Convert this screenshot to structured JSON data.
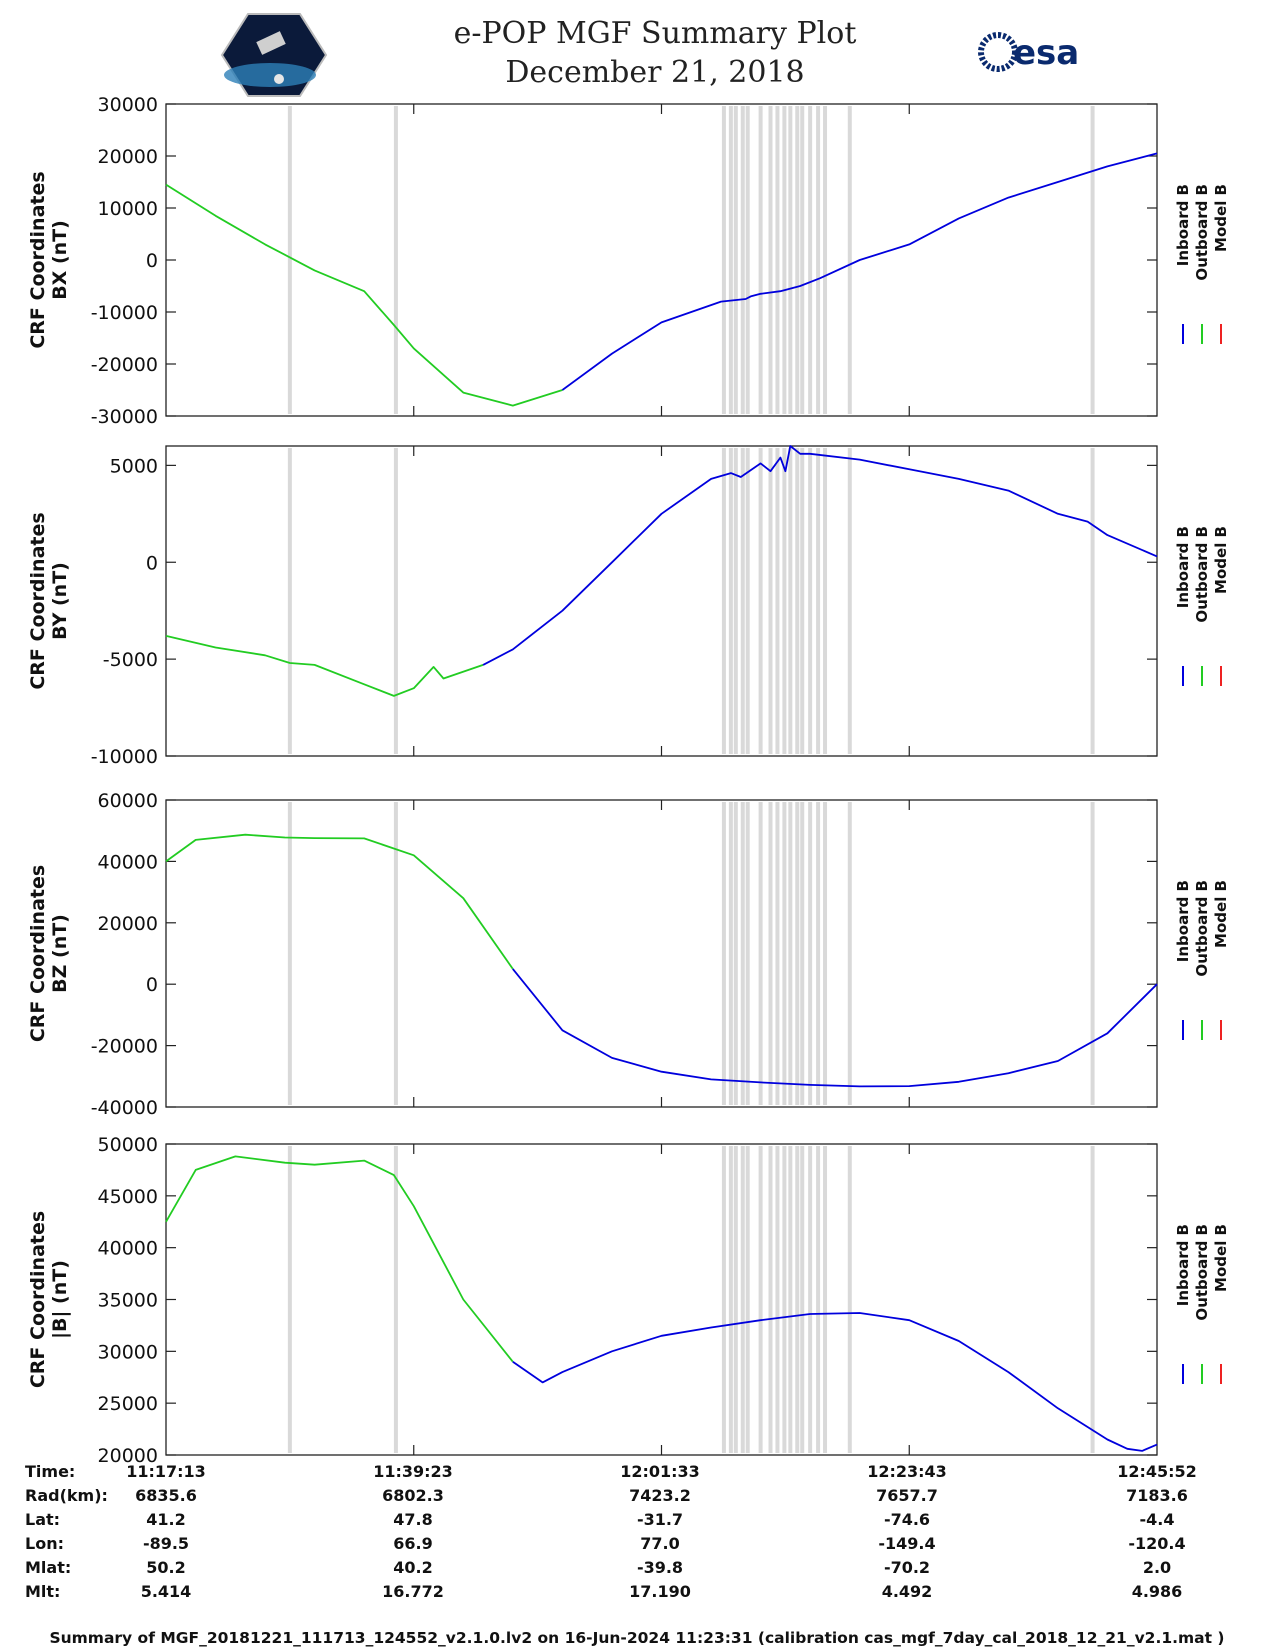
{
  "title": "e-POP MGF Summary Plot",
  "date": "December 21, 2018",
  "logos": {
    "left": "cassiope-mission-logo",
    "right_text": "esa"
  },
  "colors": {
    "inboard": "#0000dd",
    "outboard": "#22cc22",
    "model": "#ee2222",
    "shading": "#d9d9d9"
  },
  "legend": [
    {
      "label": "Inboard B",
      "color": "#0000dd"
    },
    {
      "label": "Outboard B",
      "color": "#22cc22"
    },
    {
      "label": "Model B",
      "color": "#ee2222"
    }
  ],
  "chart_data": [
    {
      "type": "line",
      "id": "bx",
      "ylabel": [
        "CRF Coordinates",
        "BX (nT)"
      ],
      "ylim": [
        -30000,
        30000
      ],
      "yticks": [
        "30000",
        "20000",
        "10000",
        "0",
        "-10000",
        "-20000",
        "-30000"
      ],
      "ytick_values": [
        30000,
        20000,
        10000,
        0,
        -10000,
        -20000,
        -30000
      ],
      "series": [
        {
          "name": "Outboard B",
          "t": [
            0,
            0.05,
            0.1,
            0.125,
            0.15,
            0.2,
            0.23,
            0.25,
            0.3,
            0.35,
            0.4
          ],
          "v": [
            14500,
            8500,
            3000,
            500,
            -2000,
            -6000,
            -12500,
            -17000,
            -25500,
            -28000,
            -25000
          ]
        },
        {
          "name": "Inboard B",
          "t": [
            0.4,
            0.45,
            0.5,
            0.56,
            0.585,
            0.59,
            0.6,
            0.62,
            0.64,
            0.66,
            0.7,
            0.75,
            0.8,
            0.85,
            0.9,
            0.95,
            1.0
          ],
          "v": [
            -25000,
            -18000,
            -12000,
            -8000,
            -7500,
            -7000,
            -6500,
            -6000,
            -5000,
            -3500,
            0,
            3000,
            8000,
            12000,
            15000,
            18000,
            20500
          ]
        }
      ]
    },
    {
      "type": "line",
      "id": "by",
      "ylabel": [
        "CRF Coordinates",
        "BY (nT)"
      ],
      "ylim": [
        -10000,
        6000
      ],
      "yticks": [
        "5000",
        "0",
        "-5000",
        "-10000"
      ],
      "ytick_values": [
        5000,
        0,
        -5000,
        -10000
      ],
      "series": [
        {
          "name": "Outboard B",
          "t": [
            0,
            0.05,
            0.1,
            0.125,
            0.15,
            0.2,
            0.23,
            0.25,
            0.27,
            0.28,
            0.32
          ],
          "v": [
            -3800,
            -4400,
            -4800,
            -5200,
            -5300,
            -6300,
            -6900,
            -6500,
            -5400,
            -6000,
            -5300
          ]
        },
        {
          "name": "Inboard B",
          "t": [
            0.32,
            0.35,
            0.4,
            0.45,
            0.5,
            0.55,
            0.57,
            0.58,
            0.6,
            0.61,
            0.62,
            0.625,
            0.63,
            0.64,
            0.65,
            0.7,
            0.75,
            0.8,
            0.85,
            0.9,
            0.93,
            0.95,
            1.0
          ],
          "v": [
            -5300,
            -4500,
            -2500,
            0,
            2500,
            4300,
            4600,
            4400,
            5100,
            4700,
            5400,
            4700,
            6000,
            5600,
            5600,
            5300,
            4800,
            4300,
            3700,
            2500,
            2100,
            1400,
            300
          ]
        }
      ]
    },
    {
      "type": "line",
      "id": "bz",
      "ylabel": [
        "CRF Coordinates",
        "BZ (nT)"
      ],
      "ylim": [
        -40000,
        60000
      ],
      "yticks": [
        "60000",
        "40000",
        "20000",
        "0",
        "-20000",
        "-40000"
      ],
      "ytick_values": [
        60000,
        40000,
        20000,
        0,
        -20000,
        -40000
      ],
      "series": [
        {
          "name": "Outboard B",
          "t": [
            0,
            0.03,
            0.08,
            0.12,
            0.15,
            0.2,
            0.25,
            0.3,
            0.35
          ],
          "v": [
            40000,
            47000,
            48700,
            47800,
            47600,
            47500,
            42000,
            28000,
            5000
          ]
        },
        {
          "name": "Inboard B",
          "t": [
            0.35,
            0.4,
            0.45,
            0.5,
            0.55,
            0.6,
            0.65,
            0.7,
            0.75,
            0.8,
            0.85,
            0.9,
            0.95,
            1.0
          ],
          "v": [
            5000,
            -15000,
            -24000,
            -28500,
            -31000,
            -32000,
            -32800,
            -33300,
            -33200,
            -31800,
            -29000,
            -25000,
            -16000,
            0
          ]
        }
      ]
    },
    {
      "type": "line",
      "id": "bmag",
      "ylabel": [
        "CRF Coordinates",
        "|B| (nT)"
      ],
      "ylim": [
        20000,
        50000
      ],
      "yticks": [
        "50000",
        "45000",
        "40000",
        "35000",
        "30000",
        "25000",
        "20000"
      ],
      "ytick_values": [
        50000,
        45000,
        40000,
        35000,
        30000,
        25000,
        20000
      ],
      "series": [
        {
          "name": "Outboard B",
          "t": [
            0,
            0.03,
            0.07,
            0.12,
            0.15,
            0.2,
            0.23,
            0.25,
            0.3,
            0.35
          ],
          "v": [
            42500,
            47500,
            48800,
            48200,
            48000,
            48400,
            47000,
            44000,
            35000,
            29000
          ]
        },
        {
          "name": "Inboard B",
          "t": [
            0.35,
            0.38,
            0.4,
            0.45,
            0.5,
            0.55,
            0.6,
            0.65,
            0.7,
            0.75,
            0.8,
            0.85,
            0.9,
            0.95,
            0.97,
            0.985,
            1.0
          ],
          "v": [
            29000,
            27000,
            28000,
            30000,
            31500,
            32300,
            33000,
            33600,
            33700,
            33000,
            31000,
            28000,
            24500,
            21500,
            20600,
            20400,
            21000
          ]
        }
      ]
    }
  ],
  "shaded_intervals_fraction": [
    0.125,
    0.232,
    0.563,
    0.57,
    0.575,
    0.582,
    0.587,
    0.6,
    0.61,
    0.617,
    0.624,
    0.63,
    0.637,
    0.642,
    0.65,
    0.658,
    0.665,
    0.69,
    0.935
  ],
  "xticks_fraction": [
    0.25,
    0.5,
    0.75
  ],
  "info_table": {
    "row_labels": [
      "Time:",
      "Rad(km):",
      "Lat:",
      "Lon:",
      "Mlat:",
      "Mlt:"
    ],
    "columns": [
      [
        "11:17:13",
        "6835.6",
        "41.2",
        "-89.5",
        "50.2",
        "5.414"
      ],
      [
        "11:39:23",
        "6802.3",
        "47.8",
        "66.9",
        "40.2",
        "16.772"
      ],
      [
        "12:01:33",
        "7423.2",
        "-31.7",
        "77.0",
        "-39.8",
        "17.190"
      ],
      [
        "12:23:43",
        "7657.7",
        "-74.6",
        "-149.4",
        "-70.2",
        "4.492"
      ],
      [
        "12:45:52",
        "7183.6",
        "-4.4",
        "-120.4",
        "2.0",
        "4.986"
      ]
    ]
  },
  "footer": "Summary of MGF_20181221_111713_124552_v2.1.0.lv2 on 16-Jun-2024 11:23:31 (calibration cas_mgf_7day_cal_2018_12_21_v2.1.mat )"
}
